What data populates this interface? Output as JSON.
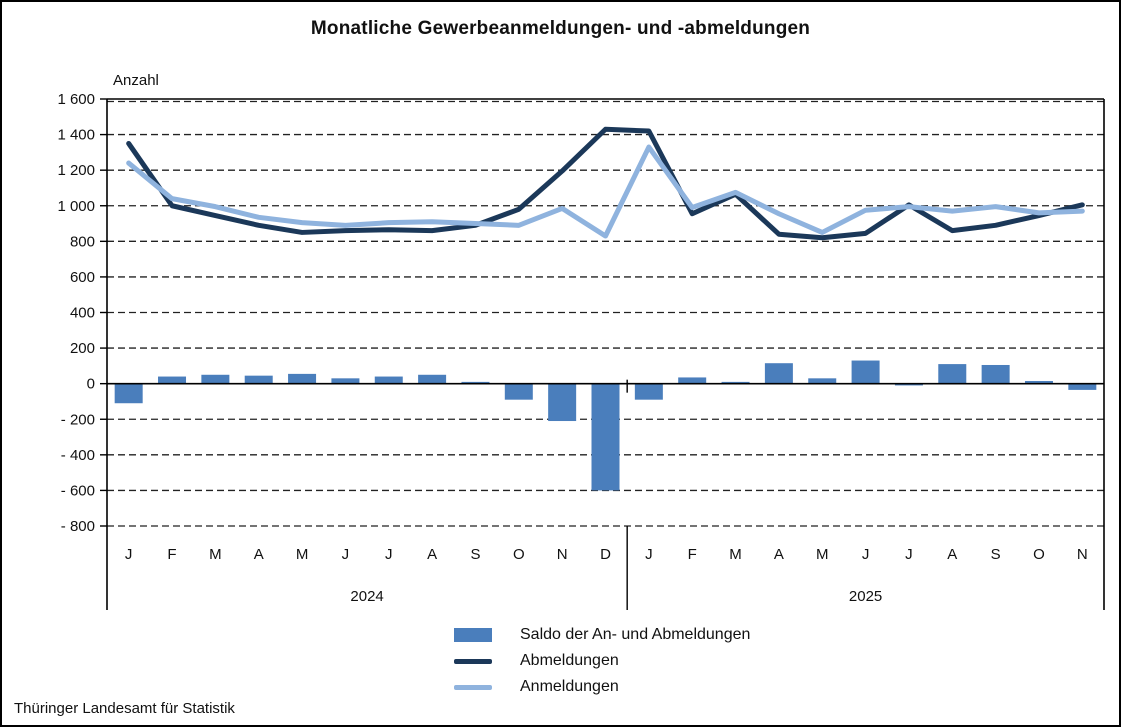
{
  "chart_title": "Monatliche Gewerbeanmeldungen- und -abmeldungen",
  "source": "Thüringer Landesamt für Statistik",
  "chart_data": {
    "type": "combo",
    "title": "Monatliche Gewerbeanmeldungen- und -abmeldungen",
    "ylabel": "Anzahl",
    "ylim": [
      -800,
      1600
    ],
    "ytick_step": 200,
    "grid": "horizontal-dashed",
    "legend_position": "bottom",
    "x_groups": [
      {
        "year": "2024",
        "months": [
          "J",
          "F",
          "M",
          "A",
          "M",
          "J",
          "J",
          "A",
          "S",
          "O",
          "N",
          "D"
        ]
      },
      {
        "year": "2025",
        "months": [
          "J",
          "F",
          "M",
          "A",
          "M",
          "J",
          "J",
          "A",
          "S",
          "O",
          "N"
        ]
      }
    ],
    "series": [
      {
        "name": "Saldo der An- und Abmeldungen",
        "kind": "bar",
        "color": "#4a7ebc",
        "values": [
          -110,
          40,
          50,
          45,
          55,
          30,
          40,
          50,
          10,
          -90,
          -210,
          -600,
          -90,
          35,
          10,
          115,
          30,
          130,
          -10,
          110,
          105,
          15,
          -35
        ]
      },
      {
        "name": "Abmeldungen",
        "kind": "line",
        "color": "#1b3859",
        "values": [
          1350,
          1000,
          945,
          890,
          850,
          860,
          865,
          860,
          890,
          980,
          1195,
          1430,
          1420,
          955,
          1065,
          840,
          820,
          845,
          1005,
          860,
          890,
          945,
          1005
        ]
      },
      {
        "name": "Anmeldungen",
        "kind": "line",
        "color": "#8fb3de",
        "values": [
          1240,
          1040,
          995,
          935,
          905,
          890,
          905,
          910,
          900,
          890,
          985,
          830,
          1330,
          990,
          1075,
          955,
          850,
          975,
          995,
          970,
          995,
          960,
          970
        ]
      }
    ]
  }
}
